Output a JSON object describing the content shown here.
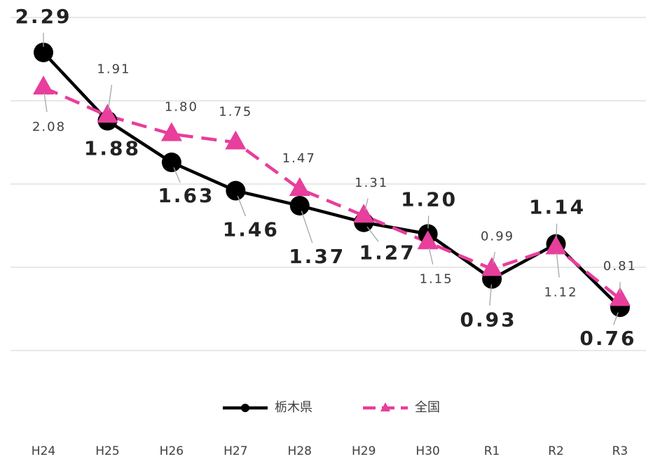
{
  "chart_data": {
    "type": "line",
    "categories": [
      "H24",
      "H25",
      "H26",
      "H27",
      "H28",
      "H29",
      "H30",
      "R1",
      "R2",
      "R3"
    ],
    "series": [
      {
        "name": "栃木県",
        "color": "#000000",
        "marker": "circle",
        "dash": false,
        "values": [
          2.29,
          1.88,
          1.63,
          1.46,
          1.37,
          1.27,
          1.2,
          0.93,
          1.14,
          0.76
        ],
        "value_labels": [
          "2.29",
          "1.88",
          "1.63",
          "1.46",
          "1.37",
          "1.27",
          "1.20",
          "0.93",
          "1.14",
          "0.76"
        ]
      },
      {
        "name": "全国",
        "color": "#e83e9c",
        "marker": "triangle",
        "dash": true,
        "values": [
          2.08,
          1.91,
          1.8,
          1.75,
          1.47,
          1.31,
          1.15,
          0.99,
          1.12,
          0.81
        ],
        "value_labels": [
          "2.08",
          "1.91",
          "1.80",
          "1.75",
          "1.47",
          "1.31",
          "1.15",
          "0.99",
          "1.12",
          "0.81"
        ]
      }
    ],
    "ylim": [
      0,
      2.5
    ],
    "yticks": [
      0.5,
      1,
      1.5,
      2,
      2.5
    ],
    "grid": true,
    "legend": "bottom"
  }
}
